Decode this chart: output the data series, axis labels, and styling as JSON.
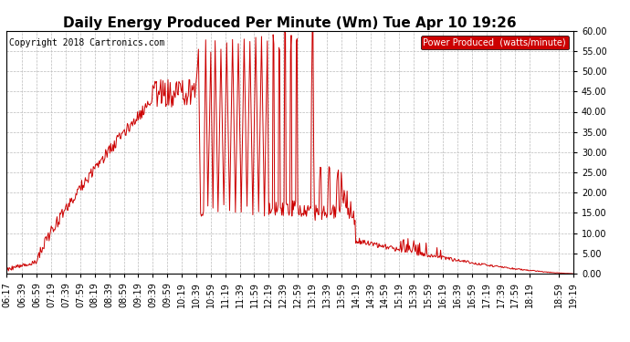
{
  "title": "Daily Energy Produced Per Minute (Wm) Tue Apr 10 19:26",
  "copyright_text": "Copyright 2018 Cartronics.com",
  "legend_label": "Power Produced  (watts/minute)",
  "legend_bg": "#cc0000",
  "legend_fg": "#ffffff",
  "line_color": "#cc0000",
  "bg_color": "#ffffff",
  "grid_color": "#bbbbbb",
  "ylim": [
    0,
    60
  ],
  "yticks": [
    0,
    5,
    10,
    15,
    20,
    25,
    30,
    35,
    40,
    45,
    50,
    55,
    60
  ],
  "ytick_labels": [
    "0.00",
    "5.00",
    "10.00",
    "15.00",
    "20.00",
    "25.00",
    "30.00",
    "35.00",
    "40.00",
    "45.00",
    "50.00",
    "55.00",
    "60.00"
  ],
  "xtick_labels": [
    "06:17",
    "06:39",
    "06:59",
    "07:19",
    "07:39",
    "07:59",
    "08:19",
    "08:39",
    "08:59",
    "09:19",
    "09:39",
    "09:59",
    "10:19",
    "10:39",
    "10:59",
    "11:19",
    "11:39",
    "11:59",
    "12:19",
    "12:39",
    "12:59",
    "13:19",
    "13:39",
    "13:59",
    "14:19",
    "14:39",
    "14:59",
    "15:19",
    "15:39",
    "15:59",
    "16:19",
    "16:39",
    "16:59",
    "17:19",
    "17:39",
    "17:59",
    "18:19",
    "18:59",
    "19:19"
  ],
  "title_fontsize": 11,
  "copyright_fontsize": 7,
  "axis_fontsize": 7,
  "legend_fontsize": 7
}
